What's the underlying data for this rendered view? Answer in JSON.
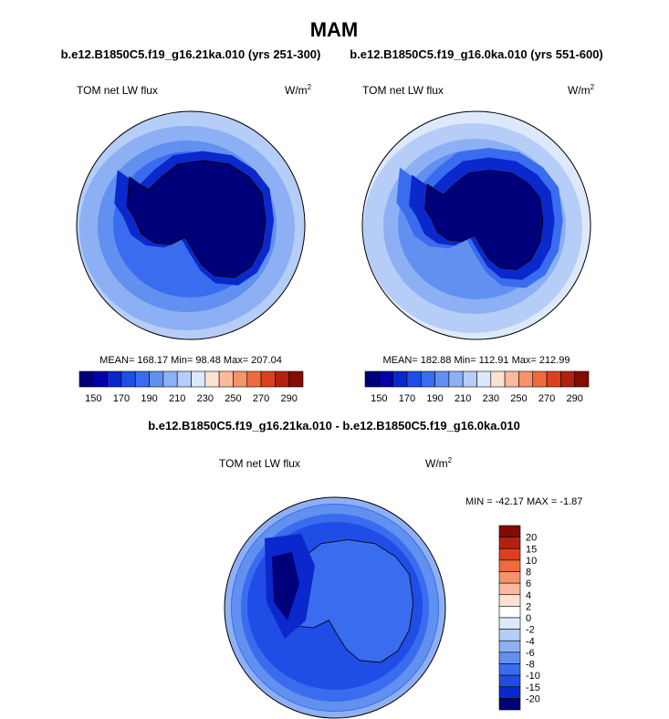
{
  "title": "MAM",
  "panels": [
    {
      "subtitle": "b.e12.B1850C5.f19_g16.21ka.010 (yrs 251-300)",
      "variable": "TOM net LW flux",
      "units": "W/m",
      "units_power": "2",
      "stats": "MEAN= 168.17  Min=  98.48  Max= 207.04",
      "colorbar_labels": [
        "150",
        "170",
        "190",
        "210",
        "230",
        "250",
        "270",
        "290"
      ]
    },
    {
      "subtitle": "b.e12.B1850C5.f19_g16.0ka.010 (yrs 551-600)",
      "variable": "TOM net LW flux",
      "units": "W/m",
      "units_power": "2",
      "stats": "MEAN= 182.88  Min= 112.91  Max= 212.99",
      "colorbar_labels": [
        "150",
        "170",
        "190",
        "210",
        "230",
        "250",
        "270",
        "290"
      ]
    }
  ],
  "difference": {
    "subtitle": "b.e12.B1850C5.f19_g16.21ka.010 - b.e12.B1850C5.f19_g16.0ka.010",
    "variable": "TOM net LW flux",
    "units": "W/m",
    "units_power": "2",
    "stats": "MIN = -42.17 MAX =  -1.87",
    "colorbar_labels": [
      "20",
      "15",
      "10",
      "8",
      "6",
      "4",
      "2",
      "0",
      "-2",
      "-4",
      "-6",
      "-8",
      "-10",
      "-15",
      "-20"
    ]
  },
  "abs_colors": [
    "#00007a",
    "#0000aa",
    "#0a28cc",
    "#1f4de6",
    "#3a6cef",
    "#6290f1",
    "#8db0f4",
    "#b6cdf8",
    "#dde9fb",
    "#fde2d2",
    "#fbba9c",
    "#f7936b",
    "#f06a3d",
    "#dc4020",
    "#b42010",
    "#850a00"
  ],
  "diff_colors": [
    "#850a00",
    "#b42010",
    "#dc4020",
    "#f06a3d",
    "#f7936b",
    "#fbba9c",
    "#fde2d2",
    "#ffffff",
    "#dde9fb",
    "#b6cdf8",
    "#8db0f4",
    "#6290f1",
    "#3a6cef",
    "#1f4de6",
    "#0a28cc",
    "#00007a"
  ]
}
